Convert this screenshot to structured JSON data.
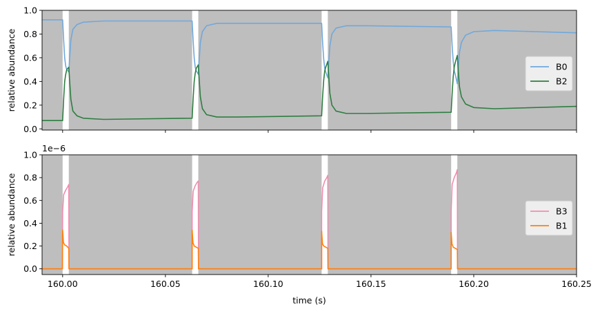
{
  "chart_data": [
    {
      "type": "line",
      "panel": "top",
      "ylabel": "relative abundance",
      "xlim": [
        159.99,
        160.25
      ],
      "ylim": [
        -0.01,
        1.0
      ],
      "yticks": [
        "0.0",
        "0.2",
        "0.4",
        "0.6",
        "0.8",
        "1.0"
      ],
      "xticks_visible": false,
      "background": "#bebebe",
      "gaps": [
        [
          160.0,
          160.003
        ],
        [
          160.063,
          160.066
        ],
        [
          160.126,
          160.129
        ],
        [
          160.189,
          160.192
        ]
      ],
      "legend": {
        "placement": "right",
        "entries": [
          "B0",
          "B2"
        ]
      },
      "series": [
        {
          "name": "B0",
          "color": "#6fa8dc",
          "x": [
            159.99,
            160.0,
            160.0005,
            160.001,
            160.0015,
            160.002,
            160.003,
            160.0035,
            160.004,
            160.005,
            160.007,
            160.01,
            160.02,
            160.063,
            160.0635,
            160.064,
            160.0645,
            160.065,
            160.066,
            160.0665,
            160.067,
            160.068,
            160.07,
            160.075,
            160.085,
            160.126,
            160.1265,
            160.127,
            160.1275,
            160.128,
            160.129,
            160.1295,
            160.13,
            160.131,
            160.133,
            160.138,
            160.148,
            160.189,
            160.1895,
            160.19,
            160.1905,
            160.191,
            160.192,
            160.1925,
            160.193,
            160.194,
            160.196,
            160.2,
            160.21,
            160.25
          ],
          "y": [
            0.92,
            0.92,
            0.75,
            0.6,
            0.53,
            0.5,
            0.48,
            0.62,
            0.75,
            0.84,
            0.88,
            0.9,
            0.91,
            0.91,
            0.74,
            0.6,
            0.52,
            0.49,
            0.46,
            0.6,
            0.73,
            0.82,
            0.87,
            0.89,
            0.89,
            0.89,
            0.72,
            0.59,
            0.51,
            0.48,
            0.43,
            0.57,
            0.7,
            0.8,
            0.85,
            0.87,
            0.87,
            0.86,
            0.7,
            0.57,
            0.49,
            0.46,
            0.38,
            0.52,
            0.64,
            0.73,
            0.79,
            0.82,
            0.83,
            0.81
          ]
        },
        {
          "name": "B2",
          "color": "#2e7d40",
          "x": [
            159.99,
            160.0,
            160.0005,
            160.001,
            160.0015,
            160.002,
            160.003,
            160.0035,
            160.004,
            160.005,
            160.007,
            160.01,
            160.02,
            160.063,
            160.0635,
            160.064,
            160.0645,
            160.065,
            160.066,
            160.0665,
            160.067,
            160.068,
            160.07,
            160.075,
            160.085,
            160.126,
            160.1265,
            160.127,
            160.1275,
            160.128,
            160.129,
            160.1295,
            160.13,
            160.131,
            160.133,
            160.138,
            160.148,
            160.189,
            160.1895,
            160.19,
            160.1905,
            160.191,
            160.192,
            160.1925,
            160.193,
            160.194,
            160.196,
            160.2,
            160.21,
            160.25
          ],
          "y": [
            0.07,
            0.07,
            0.25,
            0.4,
            0.46,
            0.5,
            0.52,
            0.38,
            0.25,
            0.15,
            0.11,
            0.09,
            0.08,
            0.09,
            0.26,
            0.4,
            0.47,
            0.51,
            0.54,
            0.4,
            0.27,
            0.17,
            0.12,
            0.1,
            0.1,
            0.11,
            0.28,
            0.41,
            0.49,
            0.52,
            0.57,
            0.43,
            0.3,
            0.2,
            0.15,
            0.13,
            0.13,
            0.14,
            0.3,
            0.44,
            0.52,
            0.56,
            0.62,
            0.48,
            0.36,
            0.27,
            0.21,
            0.18,
            0.17,
            0.19
          ]
        }
      ]
    },
    {
      "type": "line",
      "panel": "bottom",
      "ylabel": "relative abundance",
      "xlabel": "time (s)",
      "offset_text": "1e−6",
      "xlim": [
        159.99,
        160.25
      ],
      "ylim": [
        -0.05,
        1.0
      ],
      "xticks": [
        "160.00",
        "160.05",
        "160.10",
        "160.15",
        "160.20",
        "160.25"
      ],
      "yticks": [
        "0.0",
        "0.2",
        "0.4",
        "0.6",
        "0.8",
        "1.0"
      ],
      "background": "#bebebe",
      "gaps": [
        [
          160.0,
          160.003
        ],
        [
          160.063,
          160.066
        ],
        [
          160.126,
          160.129
        ],
        [
          160.189,
          160.192
        ]
      ],
      "legend": {
        "placement": "right",
        "entries": [
          "B3",
          "B1"
        ]
      },
      "series": [
        {
          "name": "B3",
          "color": "#f08cb0",
          "x": [
            159.99,
            159.9999,
            160.0,
            160.0005,
            160.0015,
            160.0025,
            160.003,
            160.0031,
            160.063,
            160.063,
            160.0635,
            160.0645,
            160.0655,
            160.066,
            160.0661,
            160.126,
            160.126,
            160.1265,
            160.1275,
            160.1285,
            160.129,
            160.1291,
            160.189,
            160.189,
            160.1895,
            160.1905,
            160.1915,
            160.192,
            160.1921,
            160.25
          ],
          "y": [
            0.0,
            0.0,
            0.5,
            0.65,
            0.69,
            0.72,
            0.74,
            0.0,
            0.0,
            0.5,
            0.68,
            0.73,
            0.76,
            0.77,
            0.0,
            0.0,
            0.5,
            0.71,
            0.77,
            0.8,
            0.82,
            0.0,
            0.0,
            0.5,
            0.74,
            0.8,
            0.84,
            0.87,
            0.0,
            0.0
          ]
        },
        {
          "name": "B1",
          "color": "#ff7f0e",
          "x": [
            159.99,
            159.9999,
            160.0,
            160.0004,
            160.001,
            160.002,
            160.003,
            160.0031,
            160.063,
            160.063,
            160.0634,
            160.064,
            160.065,
            160.066,
            160.0661,
            160.126,
            160.126,
            160.1264,
            160.127,
            160.128,
            160.129,
            160.1291,
            160.189,
            160.189,
            160.1894,
            160.19,
            160.191,
            160.192,
            160.1921,
            160.25
          ],
          "y": [
            0.0,
            0.0,
            0.34,
            0.23,
            0.21,
            0.2,
            0.18,
            0.0,
            0.0,
            0.34,
            0.23,
            0.2,
            0.19,
            0.18,
            0.0,
            0.0,
            0.33,
            0.22,
            0.2,
            0.19,
            0.18,
            0.0,
            0.0,
            0.32,
            0.22,
            0.19,
            0.18,
            0.17,
            0.0,
            0.0
          ]
        }
      ]
    }
  ]
}
